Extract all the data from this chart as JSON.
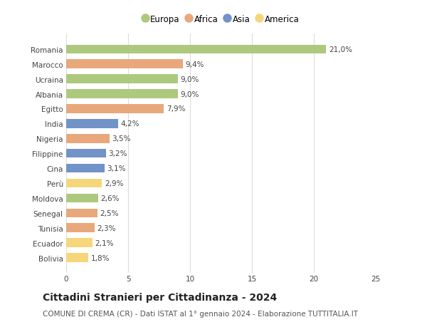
{
  "countries": [
    "Romania",
    "Marocco",
    "Ucraina",
    "Albania",
    "Egitto",
    "India",
    "Nigeria",
    "Filippine",
    "Cina",
    "Perù",
    "Moldova",
    "Senegal",
    "Tunisia",
    "Ecuador",
    "Bolivia"
  ],
  "values": [
    21.0,
    9.4,
    9.0,
    9.0,
    7.9,
    4.2,
    3.5,
    3.2,
    3.1,
    2.9,
    2.6,
    2.5,
    2.3,
    2.1,
    1.8
  ],
  "labels": [
    "21,0%",
    "9,4%",
    "9,0%",
    "9,0%",
    "7,9%",
    "4,2%",
    "3,5%",
    "3,2%",
    "3,1%",
    "2,9%",
    "2,6%",
    "2,5%",
    "2,3%",
    "2,1%",
    "1,8%"
  ],
  "continents": [
    "Europa",
    "Africa",
    "Europa",
    "Europa",
    "Africa",
    "Asia",
    "Africa",
    "Asia",
    "Asia",
    "America",
    "Europa",
    "Africa",
    "Africa",
    "America",
    "America"
  ],
  "continent_colors": {
    "Europa": "#adc97e",
    "Africa": "#e8a87c",
    "Asia": "#7193c8",
    "America": "#f5d67a"
  },
  "legend_items": [
    "Europa",
    "Africa",
    "Asia",
    "America"
  ],
  "title": "Cittadini Stranieri per Cittadinanza - 2024",
  "subtitle": "COMUNE DI CREMA (CR) - Dati ISTAT al 1° gennaio 2024 - Elaborazione TUTTITALIA.IT",
  "xlim": [
    0,
    25
  ],
  "xticks": [
    0,
    5,
    10,
    15,
    20,
    25
  ],
  "background_color": "#ffffff",
  "grid_color": "#dddddd",
  "bar_height": 0.6,
  "title_fontsize": 10,
  "subtitle_fontsize": 7.5,
  "label_fontsize": 7.5,
  "tick_fontsize": 7.5,
  "legend_fontsize": 8.5
}
